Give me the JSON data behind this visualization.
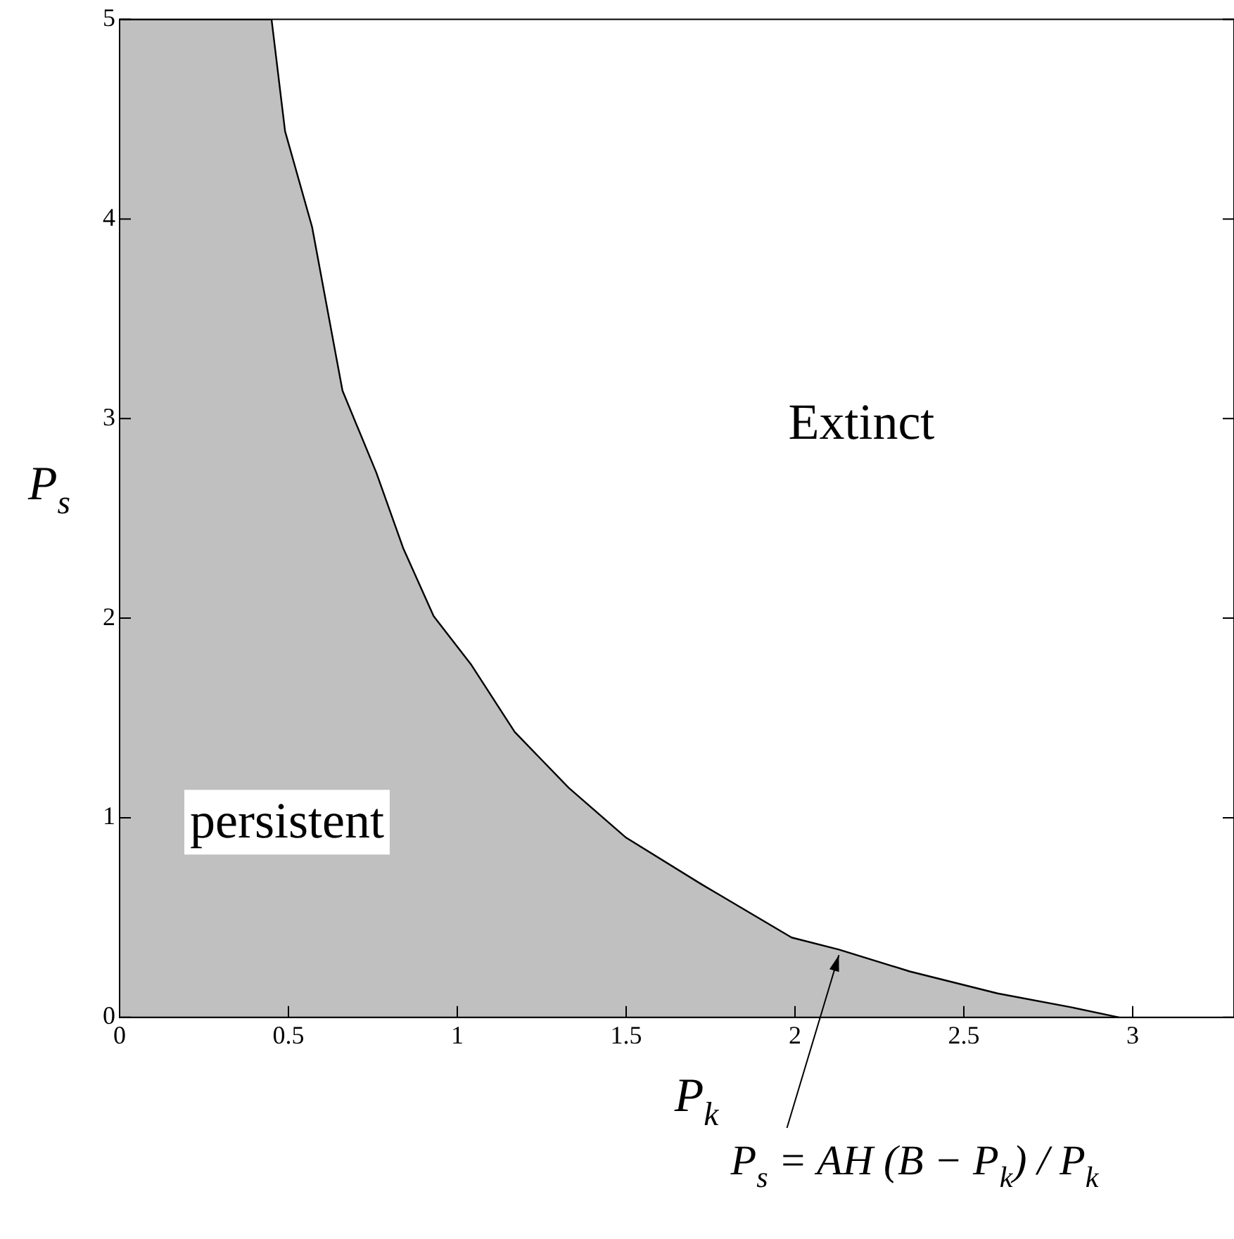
{
  "chart_data": {
    "type": "area",
    "xlabel": "P$_{k}$",
    "ylabel": "P$_{s}$",
    "x": [
      0,
      0.45,
      0.49,
      0.57,
      0.66,
      0.76,
      0.84,
      0.93,
      1.04,
      1.17,
      1.33,
      1.5,
      1.72,
      1.99,
      2.13,
      2.34,
      2.6,
      2.82,
      2.96
    ],
    "series": [
      {
        "color": "#c0c0c0",
        "values": [
          5,
          5,
          4.44,
          3.96,
          3.14,
          2.73,
          2.35,
          2.01,
          1.77,
          1.43,
          1.15,
          0.9,
          0.67,
          0.4,
          0.34,
          0.23,
          0.12,
          0.05,
          0
        ]
      }
    ],
    "xlim": [
      0,
      3.3
    ],
    "xticks": [
      0,
      0.5,
      1,
      1.5,
      2,
      2.5,
      3
    ],
    "ylim": [
      0,
      5
    ],
    "yticks": [
      0,
      1,
      2,
      3,
      4,
      5
    ],
    "grid": false,
    "legend": false,
    "marker": "none",
    "line_style": "solid",
    "annotations": [
      "Extinct",
      "persistent",
      {
        "text": "P$_{s}$ = AH (B − P$_{k}$) / P$_{k}$",
        "x": 2.13,
        "y": 0.34
      }
    ]
  }
}
